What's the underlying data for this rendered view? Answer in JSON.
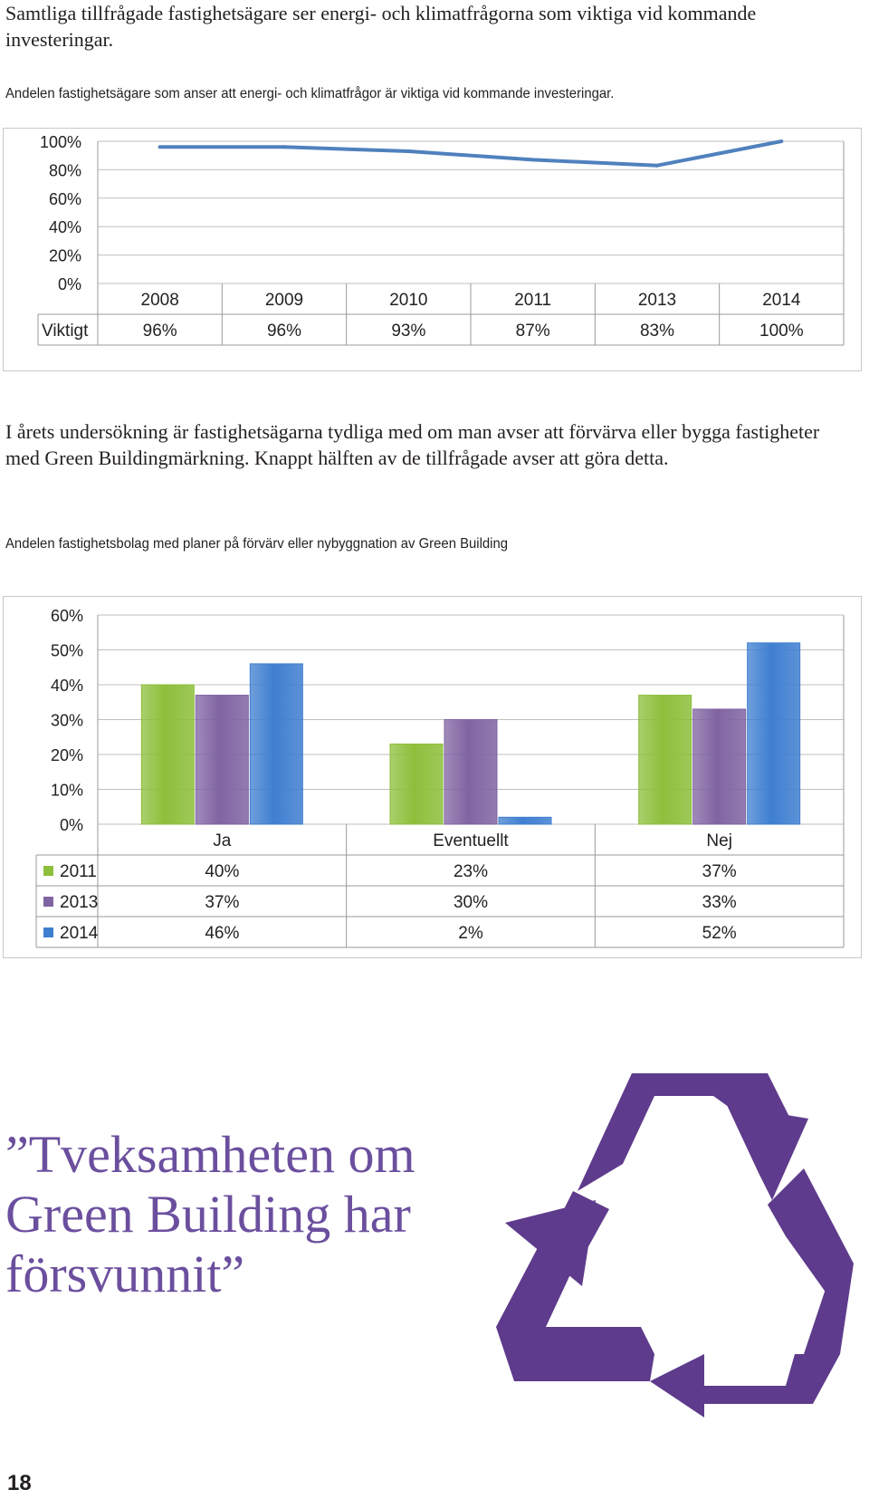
{
  "intro": "Samtliga tillfrågade fastighetsägare ser energi- och klimatfrågorna som viktiga vid kommande investeringar.",
  "caption1": "Andelen fastighetsägare som anser att energi- och klimatfrågor är viktiga vid kommande investeringar.",
  "body": "I årets undersökning är fastighetsägarna tydliga med om man avser att förvärva eller bygga fastigheter med Green Buildingmärkning. Knappt hälften av de tillfrågade avser att göra detta.",
  "caption2": "Andelen fastighetsbolag med planer på förvärv eller nybyggnation av Green Building",
  "quote": "”Tveksamheten om Green Building har försvunnit”",
  "page_number": "18",
  "colors": {
    "line": "#4f81bd",
    "green": "#8dbf3b",
    "purple": "#8064a2",
    "blue": "#3f7fd0",
    "recycle": "#5e3b8c",
    "quote": "#6b4f9e"
  },
  "chart_data": [
    {
      "type": "line",
      "categories": [
        "2008",
        "2009",
        "2010",
        "2011",
        "2013",
        "2014"
      ],
      "series": [
        {
          "name": "Viktigt",
          "values": [
            96,
            96,
            93,
            87,
            83,
            100
          ],
          "labels": [
            "96%",
            "96%",
            "93%",
            "87%",
            "83%",
            "100%"
          ]
        }
      ],
      "y_ticks": [
        "100%",
        "80%",
        "60%",
        "40%",
        "20%",
        "0%"
      ],
      "ylim": [
        0,
        100
      ],
      "grid": true,
      "data_table": true
    },
    {
      "type": "bar",
      "categories": [
        "Ja",
        "Eventuellt",
        "Nej"
      ],
      "series": [
        {
          "name": "2011",
          "values": [
            40,
            23,
            37
          ],
          "labels": [
            "40%",
            "23%",
            "37%"
          ]
        },
        {
          "name": "2013",
          "values": [
            37,
            30,
            33
          ],
          "labels": [
            "37%",
            "30%",
            "33%"
          ]
        },
        {
          "name": "2014",
          "values": [
            46,
            2,
            52
          ],
          "labels": [
            "46%",
            "2%",
            "52%"
          ]
        }
      ],
      "y_ticks": [
        "60%",
        "50%",
        "40%",
        "30%",
        "20%",
        "10%",
        "0%"
      ],
      "ylim": [
        0,
        60
      ],
      "grid": true,
      "data_table": true
    }
  ]
}
